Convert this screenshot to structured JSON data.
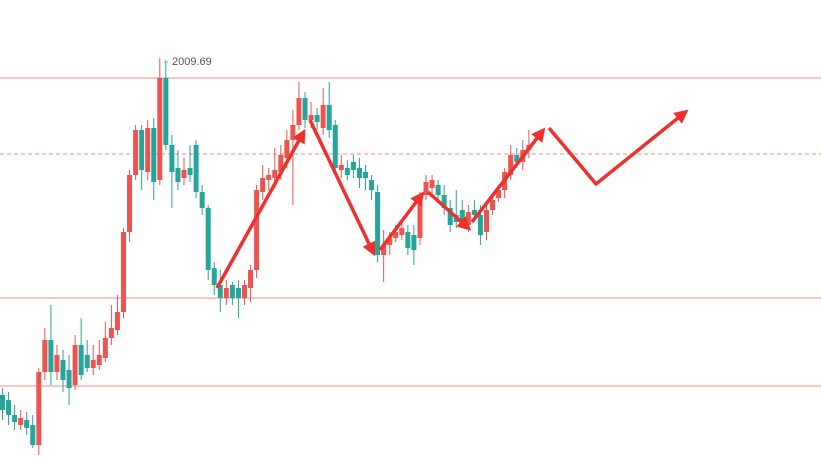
{
  "chart_data": {
    "type": "candlestick",
    "categories": [
      null,
      null,
      null,
      null,
      null,
      null,
      null,
      null,
      null,
      null,
      null,
      null,
      null,
      null,
      null,
      null,
      null,
      null,
      null,
      null,
      null,
      null,
      null,
      null,
      null,
      null,
      null,
      null,
      null,
      null,
      null,
      null,
      null,
      null,
      null,
      null,
      null,
      null,
      null,
      null,
      null,
      null,
      null,
      null,
      null,
      null,
      null,
      null,
      null,
      null,
      null,
      null,
      null,
      null,
      null,
      null,
      null,
      null,
      null,
      null,
      null,
      null,
      null,
      null,
      null,
      null,
      null,
      null,
      null,
      null,
      null,
      null,
      null,
      null,
      null,
      null,
      null,
      null,
      null,
      null,
      null,
      null,
      null,
      null,
      null,
      null,
      null,
      null
    ],
    "open": [
      1925.5,
      1924.25,
      1920.5,
      1918,
      1919.25,
      1918,
      1913,
      1931.25,
      1939.25,
      1931.25,
      1934.25,
      1931.75,
      1928,
      1938,
      1935.5,
      1932.25,
      1933,
      1934.75,
      1939.75,
      1941.75,
      1946.25,
      1966.25,
      1980.5,
      1991.75,
      1981.25,
      1992.25,
      1979.25,
      2004.75,
      1988,
      1982.25,
      1979.75,
      1982.25,
      1988,
      1976.25,
      1972.25,
      1957.25,
      1953,
      1949.75,
      1953,
      1952.25,
      1949.75,
      1952.25,
      1956.75,
      1976.25,
      1979.25,
      1979.75,
      1981.25,
      1984.75,
      1989.25,
      1993,
      1999.75,
      1994.25,
      1995.5,
      1992.25,
      1998,
      1993,
      1981.75,
      1982.25,
      1983.75,
      1982.25,
      1981.25,
      1979.25,
      1976.25,
      1960.5,
      1963,
      1964.75,
      1965.5,
      1966.25,
      1965.5,
      1964.75,
      1975.5,
      1977.25,
      1978,
      1975.5,
      1972.25,
      1970.5,
      1971.75,
      1968,
      1971.75,
      1970.5,
      1966.25,
      1971.75,
      1974.75,
      1976.75,
      1980.5,
      1985.5,
      1983.75,
      1986.75
    ],
    "close": [
      1921.75,
      1920.5,
      1918.75,
      1919.75,
      1917.25,
      1913,
      1931.25,
      1939.25,
      1931.25,
      1935.5,
      1929.25,
      1927.25,
      1938,
      1930.5,
      1932.25,
      1934.25,
      1935.5,
      1939.75,
      1942.25,
      1946.25,
      1966.25,
      1980.5,
      1991.75,
      1981.75,
      1992.25,
      1978.75,
      2004.75,
      1988,
      1981.25,
      1978.75,
      1981.75,
      1980.5,
      1976.25,
      1972.25,
      1956.75,
      1953,
      1949.75,
      1952.25,
      1949.75,
      1949.75,
      1953,
      1956.75,
      1976.75,
      1979.75,
      1980.5,
      1981.75,
      1985.5,
      1989.25,
      1993,
      1999.75,
      1994.25,
      1995.5,
      1993.75,
      1998,
      1991.75,
      1982.25,
      1983,
      1980.5,
      1981.75,
      1979.75,
      1979.75,
      1976.75,
      1960.5,
      1963,
      1964.75,
      1966.25,
      1967.25,
      1962.25,
      1961.75,
      1975.5,
      1978.75,
      1979.25,
      1975.5,
      1972.25,
      1968,
      1968.75,
      1969.25,
      1971.25,
      1970.5,
      1965.5,
      1971.75,
      1974.25,
      1976.75,
      1981.25,
      1985.5,
      1983.75,
      1986.75,
      1988
    ],
    "high": [
      1927.25,
      1926.25,
      1923,
      1921.75,
      1921.25,
      1920.5,
      1932.25,
      1942.25,
      1948,
      1938,
      1936.75,
      1935.5,
      1940.5,
      1944.75,
      1939.25,
      1938,
      1939.25,
      1943.75,
      1948,
      1950.5,
      1967.25,
      1981.75,
      1993,
      1993,
      1994.25,
      1994.75,
      2009.69,
      2009.25,
      1990.5,
      1986.75,
      1984.75,
      1988,
      1989.25,
      1978,
      1973,
      1958.75,
      1956.75,
      1954.25,
      1953.75,
      1954.25,
      1954.25,
      1958,
      1978,
      1983,
      1982.25,
      1987.25,
      1988,
      1991.75,
      1996.75,
      2003.75,
      2001.25,
      1998.75,
      1997.25,
      2002.25,
      2003.75,
      1994.25,
      1985.5,
      1984.25,
      1985.5,
      1984.75,
      1983,
      1980.5,
      1978,
      1966.75,
      1966.25,
      1968,
      1968.75,
      1968,
      1968,
      1976.25,
      1980.5,
      1980.5,
      1979.25,
      1978,
      1974.25,
      1976.75,
      1974.25,
      1973,
      1974.25,
      1973,
      1973,
      1975.5,
      1978,
      1982.25,
      1988,
      1987.25,
      1989.25,
      1991.75
    ],
    "low": [
      1919.25,
      1918,
      1916.75,
      1916.75,
      1915.5,
      1912.25,
      1910.5,
      1929.25,
      1928,
      1929.25,
      1926.25,
      1923,
      1926.75,
      1929.25,
      1931.25,
      1930.5,
      1931.75,
      1933.75,
      1938,
      1940.5,
      1944.75,
      1963.75,
      1979.25,
      1976.75,
      1979.25,
      1974.25,
      1978,
      1986.75,
      1972.25,
      1976.75,
      1978,
      1978.75,
      1974.75,
      1970.5,
      1954.25,
      1950.5,
      1946.25,
      1948,
      1948,
      1944.75,
      1948,
      1948.75,
      1954.75,
      1974.25,
      1976.75,
      1977.25,
      1979.25,
      1982.25,
      1973,
      1991.75,
      1992.25,
      1992.25,
      1991.75,
      1990.5,
      1989.75,
      1981.25,
      1979.75,
      1979.25,
      1979.75,
      1977.25,
      1976.75,
      1974.25,
      1958.75,
      1953.75,
      1960.5,
      1963.75,
      1964.25,
      1960.5,
      1958,
      1963,
      1974.25,
      1975.5,
      1974.25,
      1970.5,
      1966.25,
      1967.25,
      1968,
      1966.25,
      1969.25,
      1963,
      1964.25,
      1970.5,
      1973.75,
      1974.75,
      1979.25,
      1982.25,
      1981.75,
      1984.75
    ],
    "up_color": "#ef5350",
    "down_color": "#26a69a",
    "levels": [
      2004.75,
      1949.75,
      1927.75
    ],
    "dashed_levels": [
      1985.75
    ],
    "level_color": "#f28b8b",
    "ylim": [
      1910,
      2024.25
    ]
  }
}
